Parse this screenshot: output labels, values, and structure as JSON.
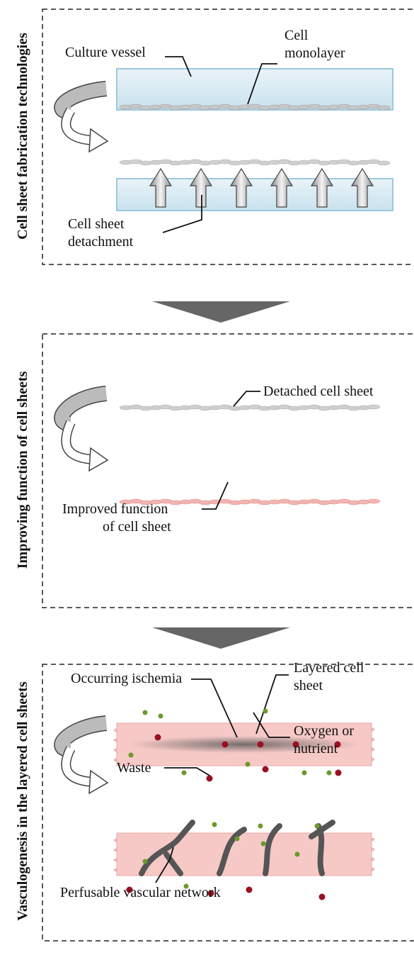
{
  "panels": [
    {
      "title": "Cell sheet fabrication technologies",
      "labels": [
        [
          "Culture vessel"
        ],
        [
          "Cell",
          "monolayer"
        ],
        [
          "Cell sheet",
          "detachment"
        ]
      ]
    },
    {
      "title": "Improving function of cell sheets",
      "labels": [
        [
          "Detached cell sheet"
        ],
        [
          "Improved function",
          "of cell sheet"
        ]
      ]
    },
    {
      "title": "Vasculogenesis in the layered cell sheets",
      "labels": [
        [
          "Occurring ischemia"
        ],
        [
          "Layered cell",
          "sheet"
        ],
        [
          "Oxygen or",
          "nutrient"
        ],
        [
          "Waste"
        ],
        [
          "Perfusable vascular network"
        ]
      ]
    }
  ]
}
